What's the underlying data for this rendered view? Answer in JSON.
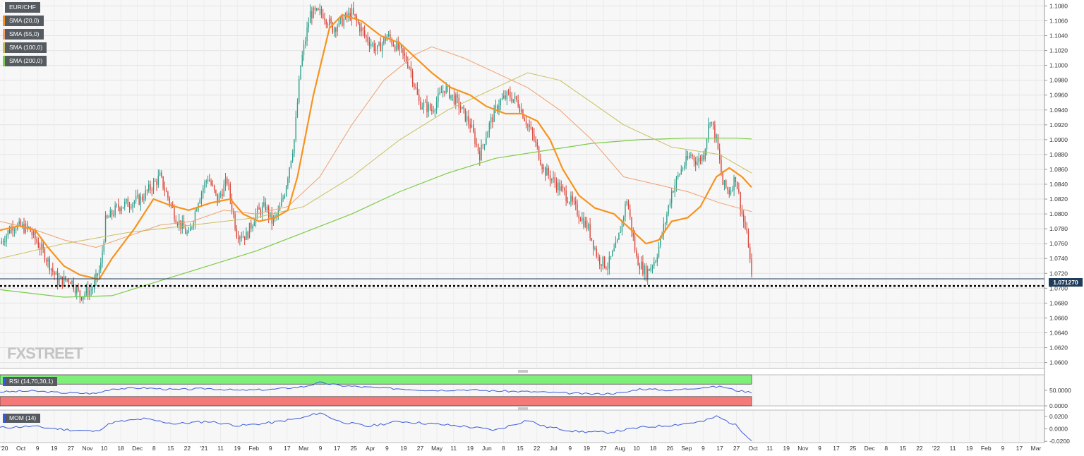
{
  "legend": {
    "symbol": "EUR/CHF",
    "sma20": "SMA (20,0)",
    "sma55": "SMA (55,0)",
    "sma100": "SMA (100,0)",
    "sma200": "SMA (200,0)"
  },
  "indicators": {
    "rsi_label": "RSI (14,70,30,1)",
    "mom_label": "MOM (14)"
  },
  "last_price_label": "1.071270",
  "watermark": "FXSTREET",
  "colors": {
    "up": "#2e9e8a",
    "down": "#d9443a",
    "sma20": "#f7931e",
    "sma55": "#f0a070",
    "sma100": "#c8c060",
    "sma200": "#7ccc48",
    "rsi": "#3a5bd9",
    "mom": "#3a5bd9",
    "overbought_zone": "#7ef07a",
    "oversold_zone": "#f47a7a",
    "last_price_tag": "#1f3c5a"
  },
  "chart_data": {
    "type": "candlestick",
    "symbol": "EUR/CHF",
    "timeframe": "daily",
    "x_tick_labels": [
      "'20",
      "Oct",
      "9",
      "19",
      "27",
      "Nov",
      "10",
      "18",
      "Dec",
      "8",
      "15",
      "22",
      "'21",
      "11",
      "19",
      "Feb",
      "9",
      "17",
      "Mar",
      "9",
      "17",
      "25",
      "Apr",
      "9",
      "19",
      "27",
      "May",
      "11",
      "19",
      "Jun",
      "8",
      "15",
      "22",
      "Jul",
      "9",
      "19",
      "27",
      "Aug",
      "10",
      "18",
      "26",
      "Sep",
      "9",
      "17",
      "27",
      "Oct",
      "11",
      "19",
      "Nov",
      "9",
      "17",
      "25",
      "Dec",
      "8",
      "15",
      "22",
      "'22",
      "11",
      "19",
      "Feb",
      "9",
      "17",
      "Mar"
    ],
    "y_ticks": [
      "1.0600",
      "1.0620",
      "1.0640",
      "1.0660",
      "1.0680",
      "1.0700",
      "1.0720",
      "1.0740",
      "1.0760",
      "1.0780",
      "1.0800",
      "1.0820",
      "1.0840",
      "1.0860",
      "1.0880",
      "1.0900",
      "1.0920",
      "1.0940",
      "1.0960",
      "1.0980",
      "1.1000",
      "1.1020",
      "1.1040",
      "1.1060",
      "1.1080"
    ],
    "ylim": [
      1.0592,
      1.1088
    ],
    "last_price": 1.07127,
    "support_level": 1.0703,
    "close_path": [
      [
        0,
        1.076
      ],
      [
        8,
        1.0785
      ],
      [
        18,
        1.078
      ],
      [
        28,
        1.0745
      ],
      [
        36,
        1.071
      ],
      [
        44,
        1.0712
      ],
      [
        50,
        1.069
      ],
      [
        58,
        1.07
      ],
      [
        63,
        1.073
      ],
      [
        66,
        1.079
      ],
      [
        74,
        1.081
      ],
      [
        88,
        1.082
      ],
      [
        100,
        1.085
      ],
      [
        110,
        1.0795
      ],
      [
        118,
        1.077
      ],
      [
        124,
        1.082
      ],
      [
        130,
        1.085
      ],
      [
        136,
        1.0818
      ],
      [
        142,
        1.0845
      ],
      [
        148,
        1.0775
      ],
      [
        154,
        1.077
      ],
      [
        160,
        1.08
      ],
      [
        166,
        1.081
      ],
      [
        170,
        1.079
      ],
      [
        174,
        1.08
      ],
      [
        178,
        1.083
      ],
      [
        184,
        1.09
      ],
      [
        188,
        1.1
      ],
      [
        194,
        1.107
      ],
      [
        202,
        1.107
      ],
      [
        208,
        1.105
      ],
      [
        214,
        1.106
      ],
      [
        220,
        1.107
      ],
      [
        228,
        1.104
      ],
      [
        236,
        1.102
      ],
      [
        242,
        1.104
      ],
      [
        250,
        1.102
      ],
      [
        256,
        1.1
      ],
      [
        262,
        1.095
      ],
      [
        270,
        1.094
      ],
      [
        278,
        1.097
      ],
      [
        286,
        1.095
      ],
      [
        294,
        1.092
      ],
      [
        300,
        1.088
      ],
      [
        306,
        1.092
      ],
      [
        312,
        1.095
      ],
      [
        318,
        1.096
      ],
      [
        324,
        1.095
      ],
      [
        328,
        1.093
      ],
      [
        334,
        1.09
      ],
      [
        340,
        1.086
      ],
      [
        348,
        1.084
      ],
      [
        356,
        1.082
      ],
      [
        362,
        1.08
      ],
      [
        368,
        1.078
      ],
      [
        374,
        1.074
      ],
      [
        380,
        1.073
      ],
      [
        386,
        1.076
      ],
      [
        392,
        1.082
      ],
      [
        398,
        1.074
      ],
      [
        404,
        1.072
      ],
      [
        410,
        1.074
      ],
      [
        416,
        1.079
      ],
      [
        420,
        1.083
      ],
      [
        426,
        1.086
      ],
      [
        432,
        1.088
      ],
      [
        436,
        1.087
      ],
      [
        440,
        1.088
      ],
      [
        444,
        1.093
      ],
      [
        448,
        1.09
      ],
      [
        452,
        1.084
      ],
      [
        456,
        1.083
      ],
      [
        460,
        1.085
      ],
      [
        464,
        1.08
      ],
      [
        468,
        1.076
      ],
      [
        470,
        1.0712
      ]
    ],
    "sma20_path": [
      [
        0,
        1.0778
      ],
      [
        12,
        1.0784
      ],
      [
        22,
        1.0778
      ],
      [
        30,
        1.0755
      ],
      [
        40,
        1.073
      ],
      [
        50,
        1.0718
      ],
      [
        62,
        1.0712
      ],
      [
        70,
        1.074
      ],
      [
        84,
        1.078
      ],
      [
        96,
        1.082
      ],
      [
        106,
        1.0812
      ],
      [
        118,
        1.0805
      ],
      [
        132,
        1.0815
      ],
      [
        144,
        1.082
      ],
      [
        152,
        1.08
      ],
      [
        162,
        1.079
      ],
      [
        172,
        1.0795
      ],
      [
        180,
        1.0805
      ],
      [
        186,
        1.085
      ],
      [
        196,
        1.096
      ],
      [
        206,
        1.105
      ],
      [
        214,
        1.1068
      ],
      [
        226,
        1.106
      ],
      [
        238,
        1.104
      ],
      [
        250,
        1.103
      ],
      [
        260,
        1.101
      ],
      [
        270,
        1.099
      ],
      [
        282,
        1.097
      ],
      [
        294,
        1.096
      ],
      [
        304,
        1.0945
      ],
      [
        316,
        1.0935
      ],
      [
        326,
        1.0935
      ],
      [
        336,
        1.0925
      ],
      [
        344,
        1.09
      ],
      [
        352,
        1.086
      ],
      [
        362,
        1.0825
      ],
      [
        372,
        1.0808
      ],
      [
        384,
        1.08
      ],
      [
        394,
        1.078
      ],
      [
        404,
        1.076
      ],
      [
        412,
        1.0765
      ],
      [
        420,
        1.079
      ],
      [
        430,
        1.0795
      ],
      [
        438,
        1.081
      ],
      [
        448,
        1.085
      ],
      [
        456,
        1.0862
      ],
      [
        464,
        1.085
      ],
      [
        470,
        1.0836
      ]
    ],
    "sma55_path": [
      [
        0,
        1.079
      ],
      [
        20,
        1.078
      ],
      [
        40,
        1.0765
      ],
      [
        60,
        1.0755
      ],
      [
        80,
        1.077
      ],
      [
        100,
        1.0785
      ],
      [
        120,
        1.079
      ],
      [
        140,
        1.0805
      ],
      [
        160,
        1.08
      ],
      [
        180,
        1.081
      ],
      [
        200,
        1.085
      ],
      [
        220,
        1.092
      ],
      [
        240,
        1.098
      ],
      [
        260,
        1.1015
      ],
      [
        270,
        1.1025
      ],
      [
        290,
        1.101
      ],
      [
        310,
        1.099
      ],
      [
        330,
        1.097
      ],
      [
        350,
        1.094
      ],
      [
        370,
        1.09
      ],
      [
        390,
        1.085
      ],
      [
        410,
        1.084
      ],
      [
        430,
        1.083
      ],
      [
        450,
        1.0815
      ],
      [
        470,
        1.0803
      ]
    ],
    "sma100_path": [
      [
        0,
        1.074
      ],
      [
        40,
        1.076
      ],
      [
        80,
        1.0775
      ],
      [
        120,
        1.0785
      ],
      [
        160,
        1.0795
      ],
      [
        190,
        1.081
      ],
      [
        220,
        1.085
      ],
      [
        250,
        1.09
      ],
      [
        280,
        1.094
      ],
      [
        310,
        1.097
      ],
      [
        330,
        1.099
      ],
      [
        350,
        1.098
      ],
      [
        370,
        1.095
      ],
      [
        390,
        1.092
      ],
      [
        420,
        1.089
      ],
      [
        450,
        1.088
      ],
      [
        470,
        1.0855
      ]
    ],
    "sma200_path": [
      [
        0,
        1.0698
      ],
      [
        40,
        1.0688
      ],
      [
        70,
        1.069
      ],
      [
        100,
        1.071
      ],
      [
        130,
        1.073
      ],
      [
        160,
        1.075
      ],
      [
        190,
        1.0775
      ],
      [
        220,
        1.08
      ],
      [
        250,
        1.083
      ],
      [
        280,
        1.0855
      ],
      [
        310,
        1.0875
      ],
      [
        340,
        1.0885
      ],
      [
        370,
        1.0895
      ],
      [
        400,
        1.09
      ],
      [
        430,
        1.0902
      ],
      [
        460,
        1.0902
      ],
      [
        470,
        1.0901
      ]
    ],
    "rsi": {
      "label": "RSI (14,70,30,1)",
      "ylim": [
        0,
        100
      ],
      "y_ticks": [
        "0.0000",
        "50.0000"
      ],
      "overbought": 70,
      "oversold": 30,
      "path": [
        [
          0,
          45
        ],
        [
          20,
          48
        ],
        [
          40,
          42
        ],
        [
          60,
          40
        ],
        [
          70,
          55
        ],
        [
          90,
          58
        ],
        [
          110,
          52
        ],
        [
          130,
          56
        ],
        [
          150,
          50
        ],
        [
          170,
          53
        ],
        [
          190,
          62
        ],
        [
          200,
          75
        ],
        [
          212,
          66
        ],
        [
          230,
          60
        ],
        [
          250,
          55
        ],
        [
          270,
          50
        ],
        [
          290,
          52
        ],
        [
          310,
          48
        ],
        [
          330,
          46
        ],
        [
          350,
          42
        ],
        [
          370,
          38
        ],
        [
          390,
          42
        ],
        [
          400,
          55
        ],
        [
          420,
          50
        ],
        [
          440,
          60
        ],
        [
          452,
          62
        ],
        [
          460,
          50
        ],
        [
          470,
          44
        ]
      ]
    },
    "mom": {
      "label": "MOM (14)",
      "ylim": [
        -0.022,
        0.03
      ],
      "y_ticks": [
        "-0.0200",
        "0.0000",
        "0.0200"
      ],
      "path": [
        [
          0,
          0.002
        ],
        [
          20,
          0.004
        ],
        [
          40,
          -0.001
        ],
        [
          60,
          -0.004
        ],
        [
          70,
          0.01
        ],
        [
          90,
          0.016
        ],
        [
          110,
          0.008
        ],
        [
          130,
          0.012
        ],
        [
          150,
          0.005
        ],
        [
          170,
          0.01
        ],
        [
          190,
          0.018
        ],
        [
          200,
          0.026
        ],
        [
          212,
          0.012
        ],
        [
          230,
          0.004
        ],
        [
          250,
          0.012
        ],
        [
          270,
          0.008
        ],
        [
          290,
          0.004
        ],
        [
          310,
          -0.002
        ],
        [
          330,
          0.014
        ],
        [
          340,
          0.004
        ],
        [
          360,
          -0.004
        ],
        [
          380,
          -0.006
        ],
        [
          400,
          0.002
        ],
        [
          420,
          0.006
        ],
        [
          440,
          0.012
        ],
        [
          448,
          0.02
        ],
        [
          460,
          0.006
        ],
        [
          470,
          -0.018
        ]
      ]
    }
  }
}
